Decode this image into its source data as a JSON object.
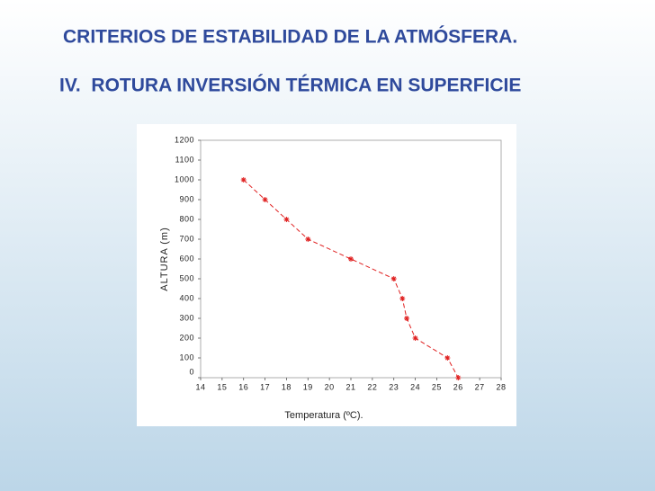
{
  "chart_data": {
    "type": "line",
    "title": "CRITERIOS DE ESTABILIDAD DE LA ATMÓSFERA.",
    "subtitle": "IV.  ROTURA INVERSIÓN TÉRMICA EN SUPERFICIE",
    "x_label": "Temperatura (ºC).",
    "y_label": "ALTURA (m)",
    "x": [
      16,
      17,
      18,
      19,
      21,
      23,
      23.4,
      23.6,
      24,
      25.5,
      26
    ],
    "values": [
      1000,
      900,
      800,
      700,
      600,
      500,
      400,
      300,
      200,
      100,
      0
    ],
    "color": "#e02020",
    "xlim": [
      14,
      28
    ],
    "xticks": [
      14,
      15,
      16,
      17,
      18,
      19,
      20,
      21,
      22,
      23,
      24,
      25,
      26,
      27,
      28
    ],
    "ylim": [
      0,
      1200
    ],
    "yticks": [
      0,
      100,
      200,
      300,
      400,
      500,
      600,
      700,
      800,
      900,
      1000,
      1100,
      1200
    ]
  }
}
